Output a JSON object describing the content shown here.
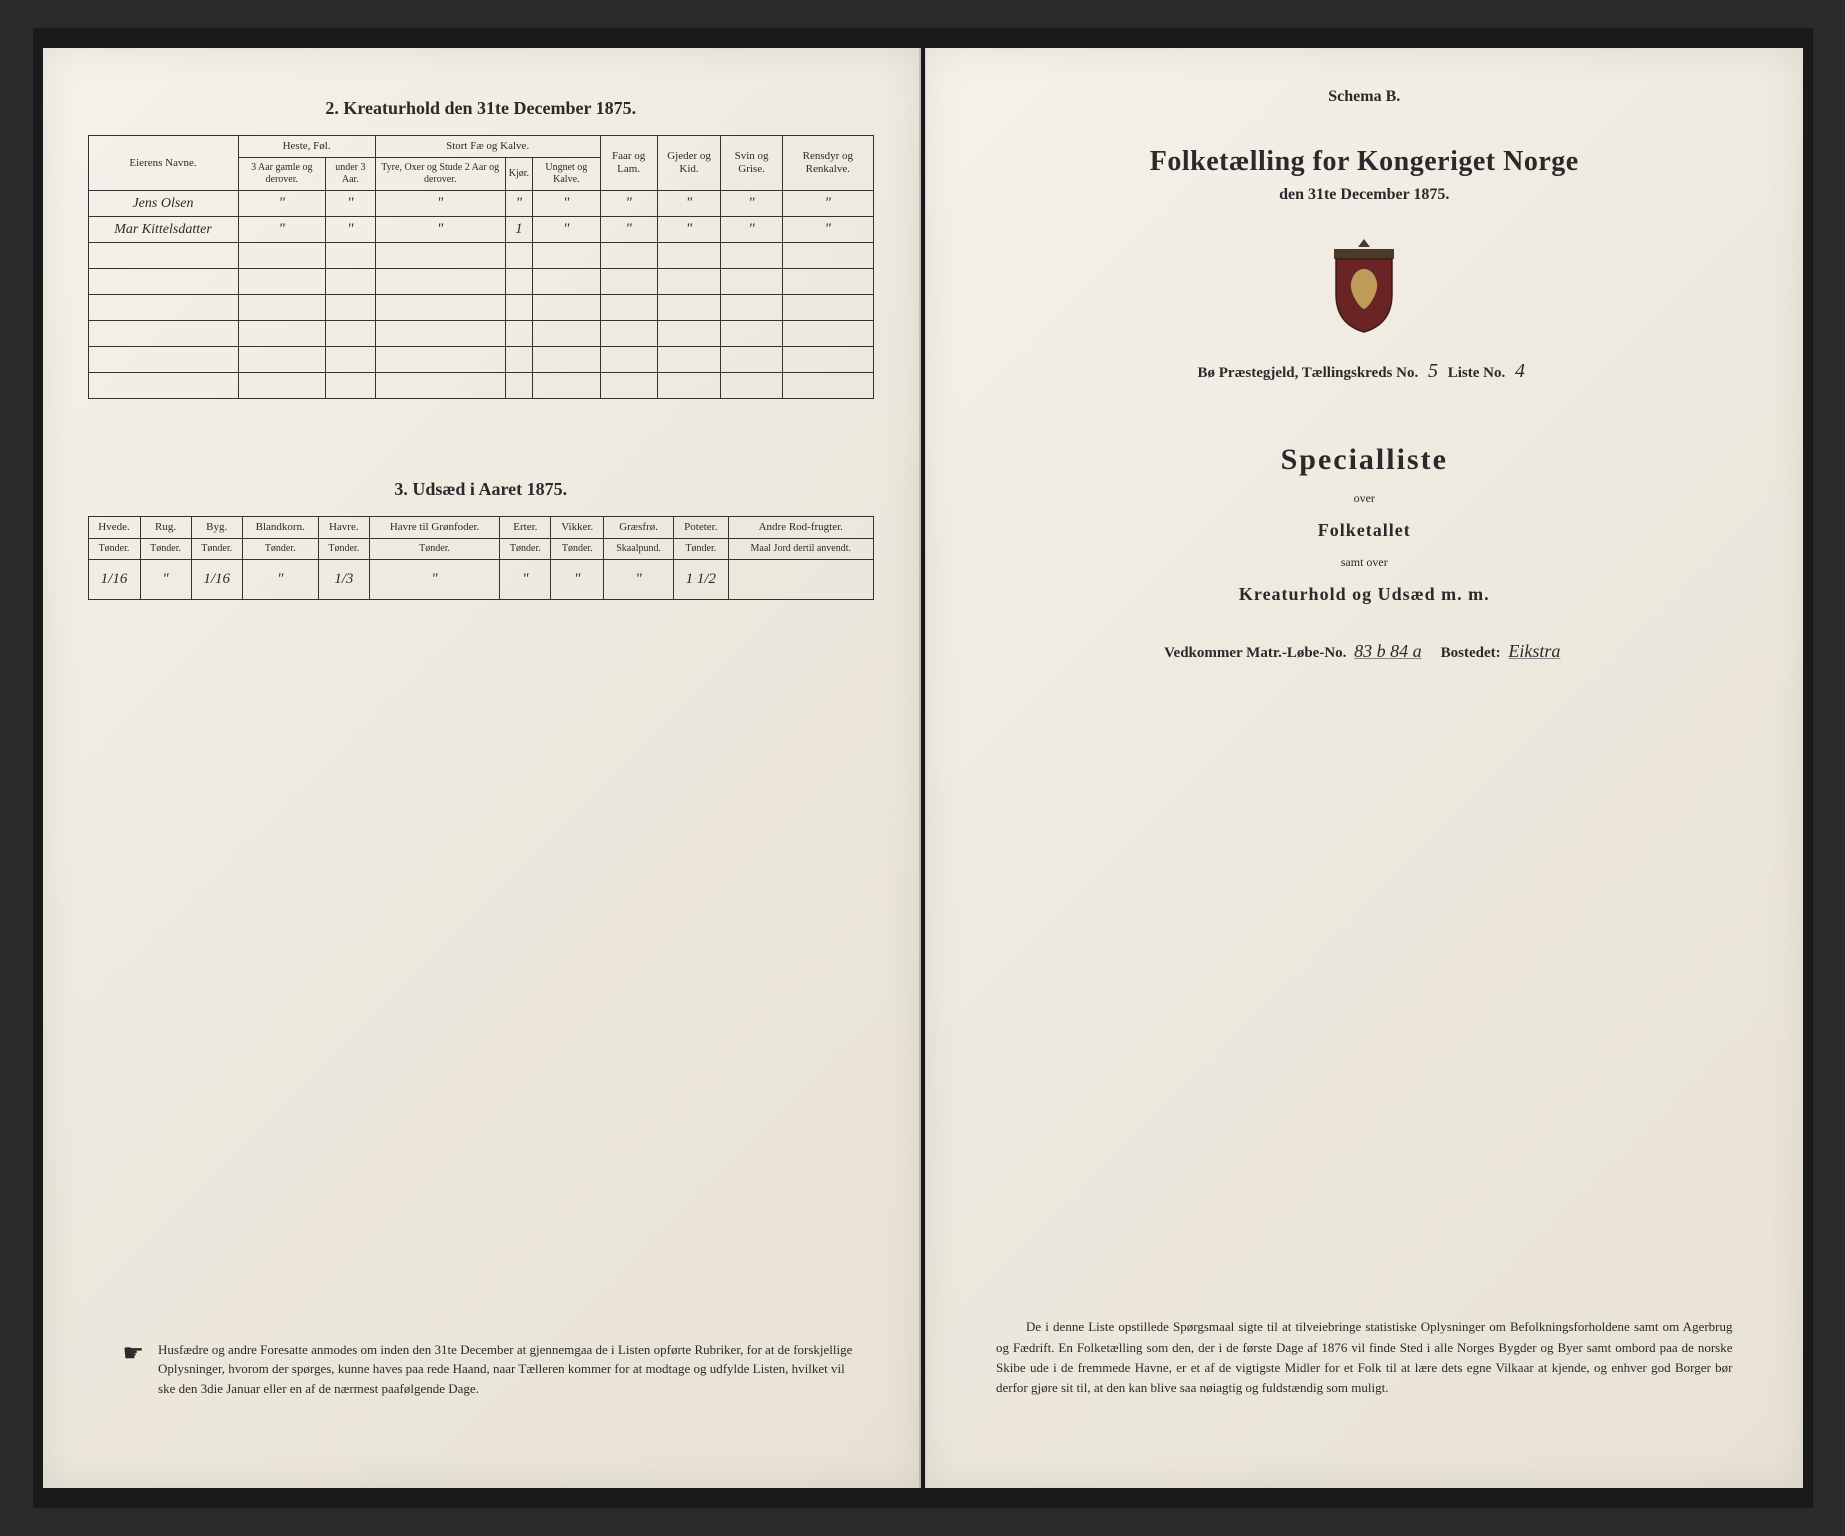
{
  "left": {
    "table2": {
      "title": "2.  Kreaturhold den 31te December 1875.",
      "col_name": "Eierens Navne.",
      "group_heste": "Heste, Føl.",
      "group_stort": "Stort Fæ og Kalve.",
      "col_faar": "Faar og Lam.",
      "col_gjeder": "Gjeder og Kid.",
      "col_svin": "Svin og Grise.",
      "col_rensdyr": "Rensdyr og Renkalve.",
      "sub_heste1": "3 Aar gamle og derover.",
      "sub_heste2": "under 3 Aar.",
      "sub_stort1": "Tyre, Oxer og Stude 2 Aar og derover.",
      "sub_stort2": "Kjør.",
      "sub_stort3": "Ungnet og Kalve.",
      "rows": [
        {
          "name": "Jens Olsen",
          "c1": "\"",
          "c2": "\"",
          "c3": "\"",
          "c4": "\"",
          "c5": "\"",
          "c6": "\"",
          "c7": "\"",
          "c8": "\"",
          "c9": "\""
        },
        {
          "name": "Mar Kittelsdatter",
          "c1": "\"",
          "c2": "\"",
          "c3": "\"",
          "c4": "1",
          "c5": "\"",
          "c6": "\"",
          "c7": "\"",
          "c8": "\"",
          "c9": "\""
        }
      ]
    },
    "table3": {
      "title": "3.  Udsæd i Aaret 1875.",
      "cols": [
        {
          "h": "Hvede.",
          "s": "Tønder."
        },
        {
          "h": "Rug.",
          "s": "Tønder."
        },
        {
          "h": "Byg.",
          "s": "Tønder."
        },
        {
          "h": "Blandkorn.",
          "s": "Tønder."
        },
        {
          "h": "Havre.",
          "s": "Tønder."
        },
        {
          "h": "Havre til Grønfoder.",
          "s": "Tønder."
        },
        {
          "h": "Erter.",
          "s": "Tønder."
        },
        {
          "h": "Vikker.",
          "s": "Tønder."
        },
        {
          "h": "Græsfrø.",
          "s": "Skaalpund."
        },
        {
          "h": "Poteter.",
          "s": "Tønder."
        },
        {
          "h": "Andre Rod-frugter.",
          "s": "Maal Jord dertil anvendt."
        }
      ],
      "row": [
        "1/16",
        "\"",
        "1/16",
        "\"",
        "1/3",
        "\"",
        "\"",
        "\"",
        "\"",
        "1 1/2",
        ""
      ]
    },
    "footnote": "Husfædre og andre Foresatte anmodes om inden den 31te December at gjennemgaa de i Listen opførte Rubriker, for at de forskjellige Oplysninger, hvorom der spørges, kunne haves paa rede Haand, naar Tælleren kommer for at modtage og udfylde Listen, hvilket vil ske den 3die Januar eller en af de nærmest paafølgende Dage."
  },
  "right": {
    "schema": "Schema B.",
    "title": "Folketælling for Kongeriget Norge",
    "date": "den 31te December 1875.",
    "parish_label_1": "Bø Præstegjeld, Tællingskreds No.",
    "parish_val_1": "5",
    "parish_label_2": "Liste No.",
    "parish_val_2": "4",
    "special": "Specialliste",
    "over": "over",
    "folketallet": "Folketallet",
    "samt": "samt over",
    "kreatur": "Kreaturhold og Udsæd m. m.",
    "matr_label_1": "Vedkommer Matr.-Løbe-No.",
    "matr_val_1": "83 b 84 a",
    "matr_label_2": "Bostedet:",
    "matr_val_2": "Eikstra",
    "bottom": "De i denne Liste opstillede Spørgsmaal sigte til at tilveiebringe statistiske Oplysninger om Befolkningsforholdene samt om Agerbrug og Fædrift.  En Folketælling som den, der i de første Dage af 1876 vil finde Sted i alle Norges Bygder og Byer samt ombord paa de norske Skibe ude i de fremmede Havne, er et af de vigtigste Midler for et Folk til at lære dets egne Vilkaar at kjende, og enhver god Borger bør derfor gjøre sit til, at den kan blive saa nøiagtig og fuldstændig som muligt."
  }
}
